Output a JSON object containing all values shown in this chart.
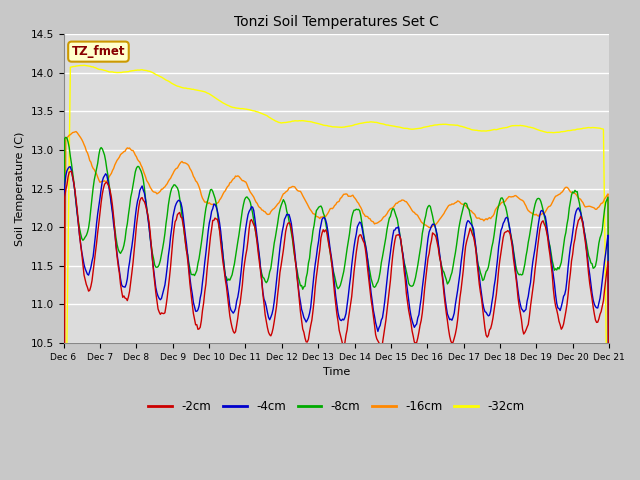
{
  "title": "Tonzi Soil Temperatures Set C",
  "xlabel": "Time",
  "ylabel": "Soil Temperature (C)",
  "ylim": [
    10.5,
    14.5
  ],
  "yticks": [
    10.5,
    11.0,
    11.5,
    12.0,
    12.5,
    13.0,
    13.5,
    14.0,
    14.5
  ],
  "colors": {
    "-2cm": "#cc0000",
    "-4cm": "#0000cc",
    "-8cm": "#00aa00",
    "-16cm": "#ff8800",
    "-32cm": "#ffff00"
  },
  "legend_labels": [
    "-2cm",
    "-4cm",
    "-8cm",
    "-16cm",
    "-32cm"
  ],
  "annotation_text": "TZ_fmet",
  "annotation_bg": "#ffffcc",
  "annotation_fg": "#880000",
  "fig_bg": "#c8c8c8",
  "plot_bg": "#dcdcdc",
  "n_points": 480,
  "x_start": 6,
  "x_end": 21,
  "xtick_positions": [
    6,
    7,
    8,
    9,
    10,
    11,
    12,
    13,
    14,
    15,
    16,
    17,
    18,
    19,
    20,
    21
  ],
  "xtick_labels": [
    "Dec 6",
    "Dec 7",
    "Dec 8",
    "Dec 9",
    "Dec 10",
    "Dec 11",
    "Dec 12",
    "Dec 13",
    "Dec 14",
    "Dec 15",
    "Dec 16",
    "Dec 17",
    "Dec 18",
    "Dec 19",
    "Dec 20",
    "Dec 21"
  ]
}
